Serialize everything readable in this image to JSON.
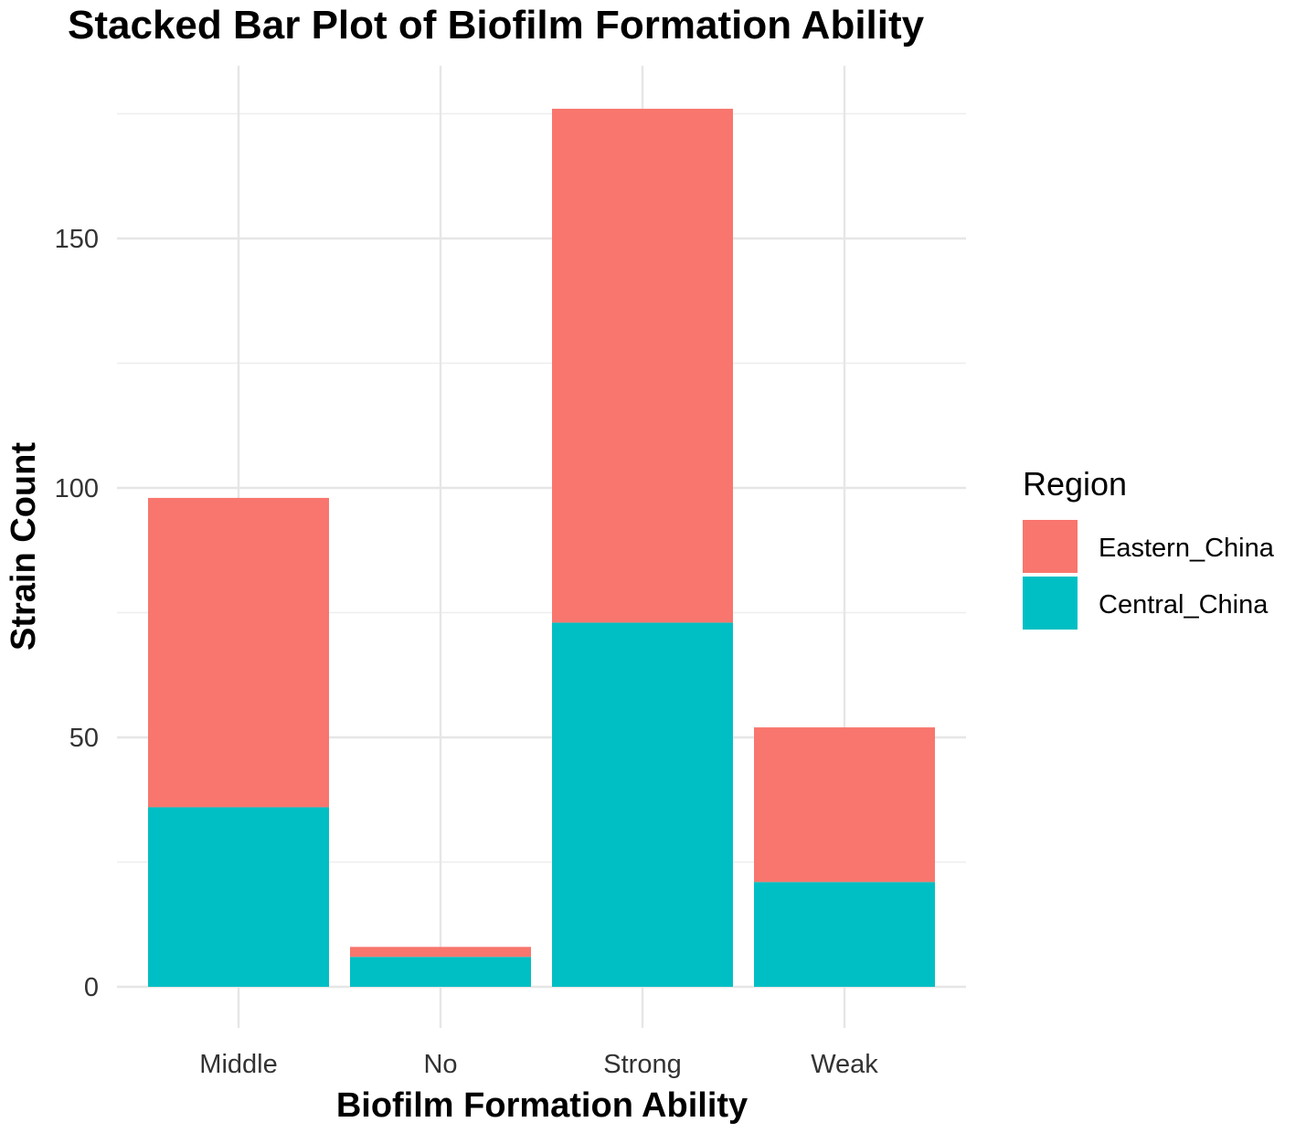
{
  "chart_data": {
    "type": "bar",
    "stacked": true,
    "title": "Stacked Bar Plot of Biofilm Formation Ability",
    "xlabel": "Biofilm Formation Ability",
    "ylabel": "Strain Count",
    "categories": [
      "Middle",
      "No",
      "Strong",
      "Weak"
    ],
    "series": [
      {
        "name": "Central_China",
        "color": "#00BFC4",
        "values": [
          36,
          6,
          73,
          21
        ]
      },
      {
        "name": "Eastern_China",
        "color": "#F8766D",
        "values": [
          62,
          2,
          103,
          31
        ]
      }
    ],
    "ylim": [
      0,
      176
    ],
    "yticks": [
      0,
      50,
      100,
      150
    ],
    "yticks_minor": [
      25,
      75,
      125,
      175
    ],
    "grid": true,
    "legend": {
      "title": "Region",
      "placement": "right",
      "entries": [
        {
          "name": "Eastern_China",
          "color": "#F8766D"
        },
        {
          "name": "Central_China",
          "color": "#00BFC4"
        }
      ]
    }
  }
}
